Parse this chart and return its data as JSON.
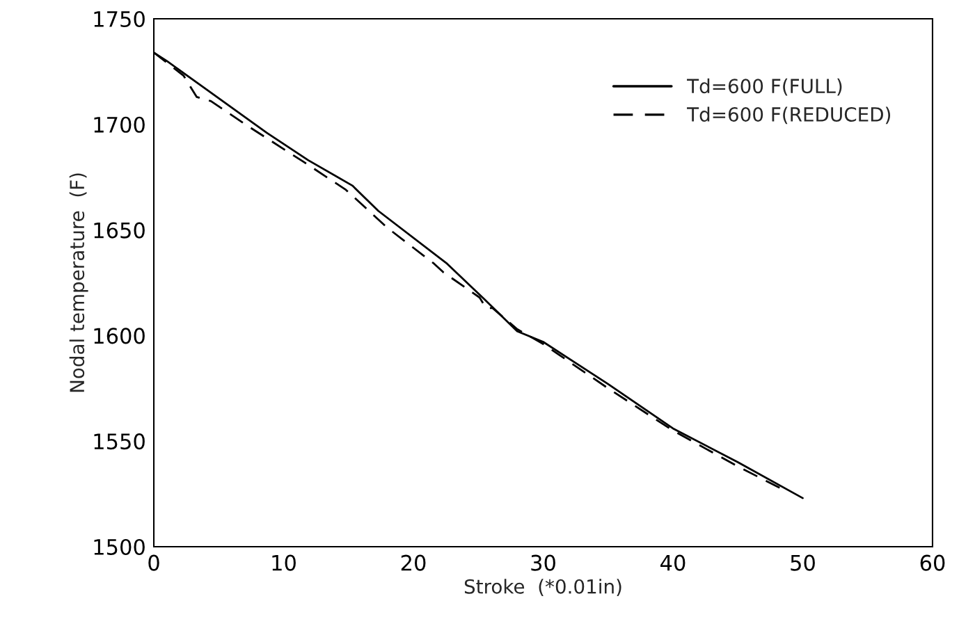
{
  "chart_data": {
    "type": "line",
    "xlabel": "Stroke  (*0.01in)",
    "ylabel": "Nodal temperature  (F)",
    "xlim": [
      0,
      60
    ],
    "xticks": [
      0,
      10,
      20,
      30,
      40,
      50,
      60
    ],
    "ylim": [
      1500,
      1750
    ],
    "yticks": [
      1500,
      1550,
      1600,
      1650,
      1700,
      1750
    ],
    "grid": false,
    "legend": "top right",
    "series": [
      {
        "name": "Td=600 F(FULL)",
        "color": "#000000",
        "line_style": "solid",
        "x": [
          0,
          1.0,
          3.5,
          8.7,
          11.9,
          15.3,
          17.3,
          22.6,
          25.5,
          28,
          30,
          35,
          40,
          45,
          50
        ],
        "values": [
          1734,
          1730,
          1719,
          1696,
          1683,
          1671,
          1659,
          1634,
          1617,
          1602,
          1597,
          1577,
          1556,
          1540,
          1523
        ]
      },
      {
        "name": "Td=600 F(REDUCED)",
        "color": "#000000",
        "line_style": "dashed",
        "x": [
          0,
          2.3,
          3.3,
          4.4,
          7.3,
          11.6,
          14.8,
          18,
          21.6,
          22.3,
          25.1,
          25.6,
          26.1,
          28,
          30,
          35,
          40,
          45,
          48.5
        ],
        "values": [
          1734,
          1723,
          1713,
          1711,
          1699,
          1682,
          1669,
          1651,
          1634,
          1630,
          1618,
          1613,
          1613,
          1603,
          1596,
          1575,
          1555,
          1538,
          1527
        ]
      }
    ]
  }
}
